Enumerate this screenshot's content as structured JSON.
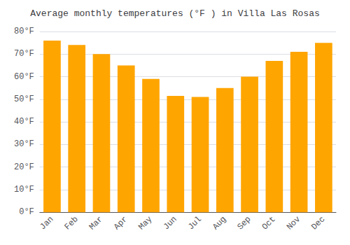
{
  "chart_data": {
    "type": "bar",
    "title": "Average monthly temperatures (°F ) in Villa Las Rosas",
    "categories": [
      "Jan",
      "Feb",
      "Mar",
      "Apr",
      "May",
      "Jun",
      "Jul",
      "Aug",
      "Sep",
      "Oct",
      "Nov",
      "Dec"
    ],
    "values": [
      76,
      74,
      70,
      65,
      59,
      51.5,
      51,
      55,
      60,
      67,
      71,
      75
    ],
    "color": "#FFA500",
    "ylim": [
      0,
      80
    ],
    "yticks": [
      {
        "value": 0,
        "label": "0°F"
      },
      {
        "value": 10,
        "label": "10°F"
      },
      {
        "value": 20,
        "label": "20°F"
      },
      {
        "value": 30,
        "label": "30°F"
      },
      {
        "value": 40,
        "label": "40°F"
      },
      {
        "value": 50,
        "label": "50°F"
      },
      {
        "value": 60,
        "label": "60°F"
      },
      {
        "value": 70,
        "label": "70°F"
      },
      {
        "value": 80,
        "label": "80°F"
      }
    ],
    "grid": true
  }
}
